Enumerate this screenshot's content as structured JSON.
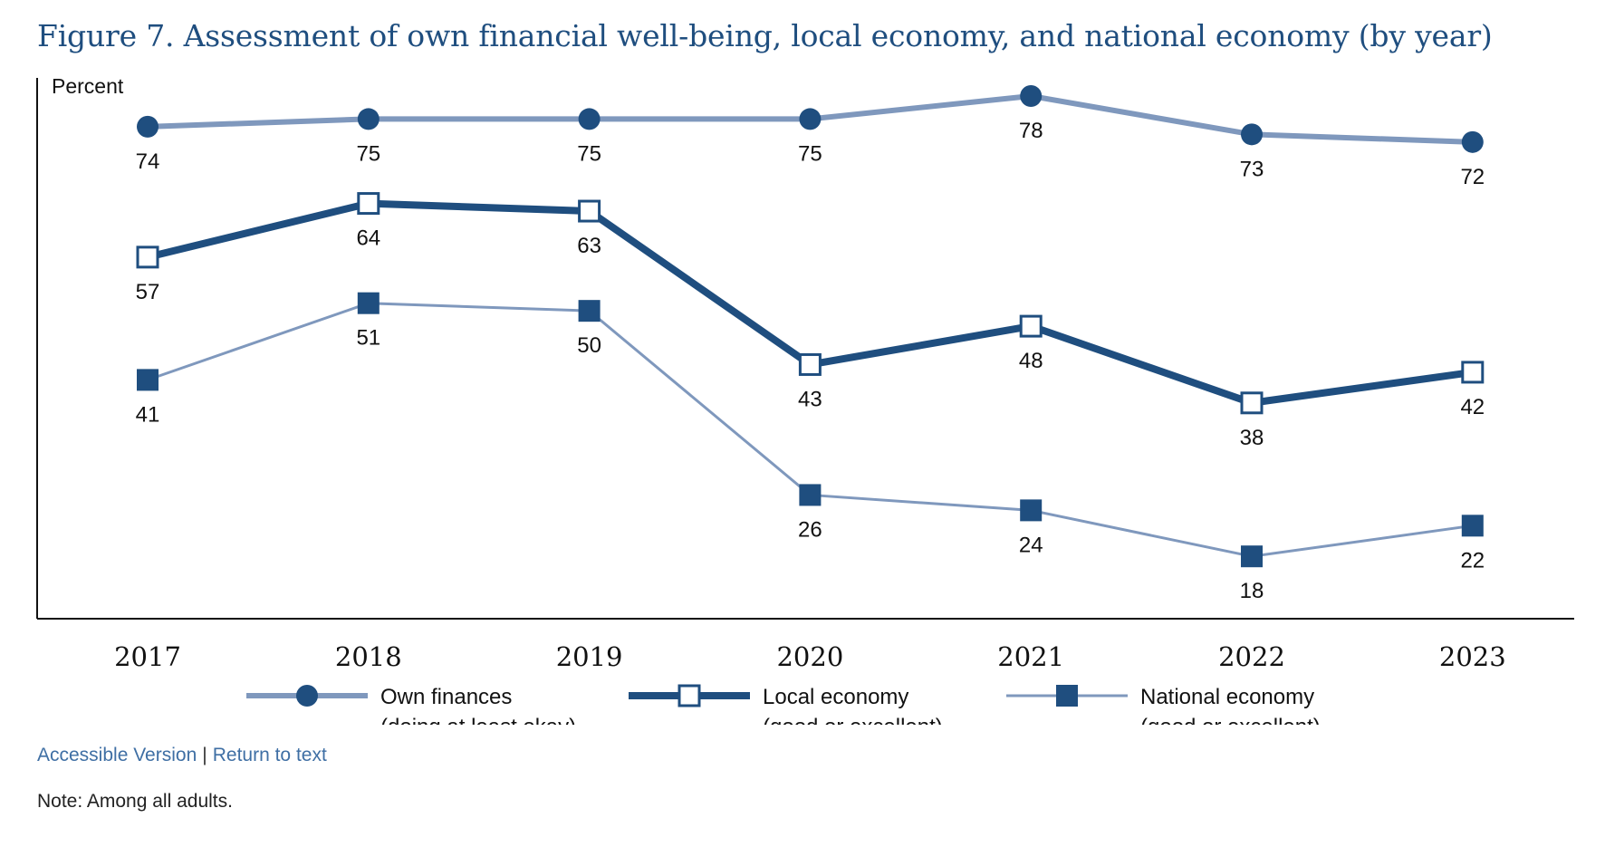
{
  "title": "Figure 7. Assessment of own financial well-being, local economy, and national economy (by year)",
  "links": {
    "accessible_label": "Accessible Version",
    "separator": "|",
    "return_label": "Return to text"
  },
  "note": "Note: Among all adults.",
  "colors": {
    "title": "#1f4e7f",
    "own_finances_line": "#7f98bd",
    "own_finances_marker": "#1f4e7f",
    "local_economy": "#1f4e7f",
    "national_economy_line": "#7f98bd",
    "national_economy_marker": "#1f4e7f",
    "axis": "#111111"
  },
  "chart_data": {
    "type": "line",
    "title": "Figure 7. Assessment of own financial well-being, local economy, and national economy (by year)",
    "ylabel": "Percent",
    "xlabel": "",
    "x": [
      "2017",
      "2018",
      "2019",
      "2020",
      "2021",
      "2022",
      "2023"
    ],
    "ylim": [
      10,
      80
    ],
    "grid": false,
    "legend_position": "bottom",
    "series": [
      {
        "id": "own",
        "name": "Own finances (doing at least okay)",
        "name_lines": [
          "Own finances",
          "(doing at least okay)"
        ],
        "values": [
          74,
          75,
          75,
          75,
          78,
          73,
          72
        ],
        "marker": "circle-filled",
        "line_style": "medium-light"
      },
      {
        "id": "local",
        "name": "Local economy (good or excellent)",
        "name_lines": [
          "Local economy",
          "(good or excellent)"
        ],
        "values": [
          57,
          64,
          63,
          43,
          48,
          38,
          42
        ],
        "marker": "square-open",
        "line_style": "thick-dark"
      },
      {
        "id": "national",
        "name": "National economy (good or excellent)",
        "name_lines": [
          "National economy",
          "(good or excellent)"
        ],
        "values": [
          41,
          51,
          50,
          26,
          24,
          18,
          22
        ],
        "marker": "square-filled",
        "line_style": "thin-light"
      }
    ]
  }
}
